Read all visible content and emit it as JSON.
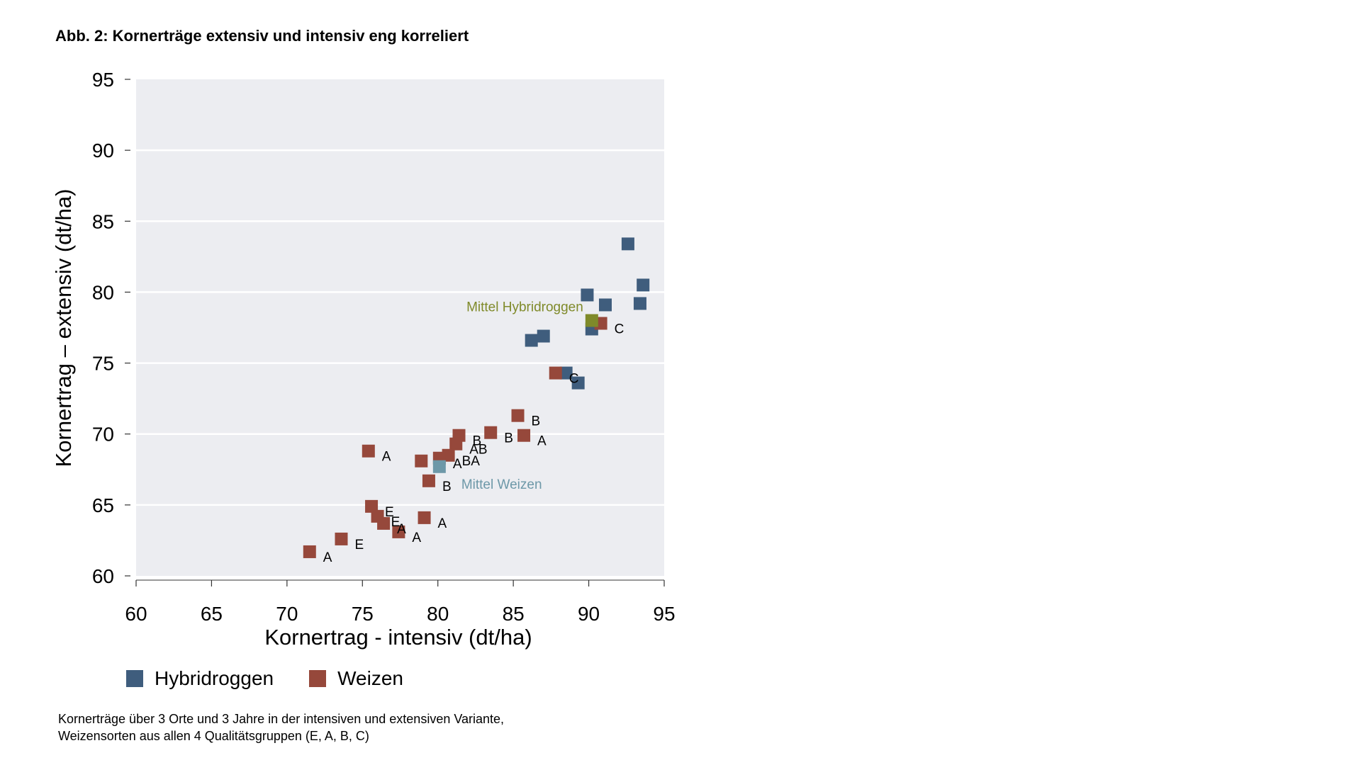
{
  "chart_data": {
    "type": "scatter",
    "title": "Abb. 2: Kornerträge extensiv und intensiv eng korreliert",
    "xlabel": "Kornertrag - intensiv (dt/ha)",
    "ylabel": "Kornertrag – extensiv (dt/ha)",
    "xlim": [
      60,
      95
    ],
    "ylim": [
      60,
      95
    ],
    "xticks": [
      "60",
      "65",
      "70",
      "75",
      "80",
      "85",
      "90",
      "95"
    ],
    "yticks": [
      "60",
      "65",
      "70",
      "75",
      "80",
      "85",
      "90",
      "95"
    ],
    "grid": "horizontal",
    "legend_position": "bottom",
    "background_color": "#ecedf1",
    "series": [
      {
        "name": "Hybridroggen",
        "color": "#3f5d7d",
        "points": [
          {
            "x": 92.6,
            "y": 83.4
          },
          {
            "x": 93.6,
            "y": 80.5
          },
          {
            "x": 89.9,
            "y": 79.8
          },
          {
            "x": 91.1,
            "y": 79.1
          },
          {
            "x": 93.4,
            "y": 79.2
          },
          {
            "x": 90.2,
            "y": 77.4
          },
          {
            "x": 86.2,
            "y": 76.6
          },
          {
            "x": 87.0,
            "y": 76.9
          },
          {
            "x": 88.5,
            "y": 74.3
          },
          {
            "x": 89.3,
            "y": 73.6
          }
        ]
      },
      {
        "name": "Weizen",
        "color": "#96483b",
        "points": [
          {
            "x": 90.8,
            "y": 77.8,
            "label": "C"
          },
          {
            "x": 87.8,
            "y": 74.3,
            "label": "C"
          },
          {
            "x": 85.3,
            "y": 71.3,
            "label": "B"
          },
          {
            "x": 85.7,
            "y": 69.9,
            "label": "A"
          },
          {
            "x": 83.5,
            "y": 70.1,
            "label": "B"
          },
          {
            "x": 81.4,
            "y": 69.9,
            "label": "B"
          },
          {
            "x": 81.2,
            "y": 69.3,
            "label": "AB"
          },
          {
            "x": 80.7,
            "y": 68.5,
            "label": "BA"
          },
          {
            "x": 80.1,
            "y": 68.3,
            "label": "A"
          },
          {
            "x": 78.9,
            "y": 68.1
          },
          {
            "x": 79.4,
            "y": 66.7,
            "label": "B"
          },
          {
            "x": 75.4,
            "y": 68.8,
            "label": "A"
          },
          {
            "x": 75.6,
            "y": 64.9,
            "label": "E"
          },
          {
            "x": 76.0,
            "y": 64.2,
            "label": "E"
          },
          {
            "x": 76.4,
            "y": 63.7,
            "label": "A"
          },
          {
            "x": 77.4,
            "y": 63.1,
            "label": "A"
          },
          {
            "x": 79.1,
            "y": 64.1,
            "label": "A"
          },
          {
            "x": 73.6,
            "y": 62.6,
            "label": "E"
          },
          {
            "x": 71.5,
            "y": 61.7,
            "label": "A"
          }
        ]
      }
    ],
    "means": [
      {
        "label": "Mittel Hybridroggen",
        "x": 90.2,
        "y": 78.0,
        "color": "#7f8a2a"
      },
      {
        "label": "Mittel Weizen",
        "x": 80.1,
        "y": 67.7,
        "color": "#6d98a8"
      }
    ]
  },
  "footnote": [
    "Kornerträge über 3 Orte und 3 Jahre in der intensiven und extensiven Variante,",
    "Weizensorten aus allen 4 Qualitätsgruppen (E, A, B, C)"
  ]
}
